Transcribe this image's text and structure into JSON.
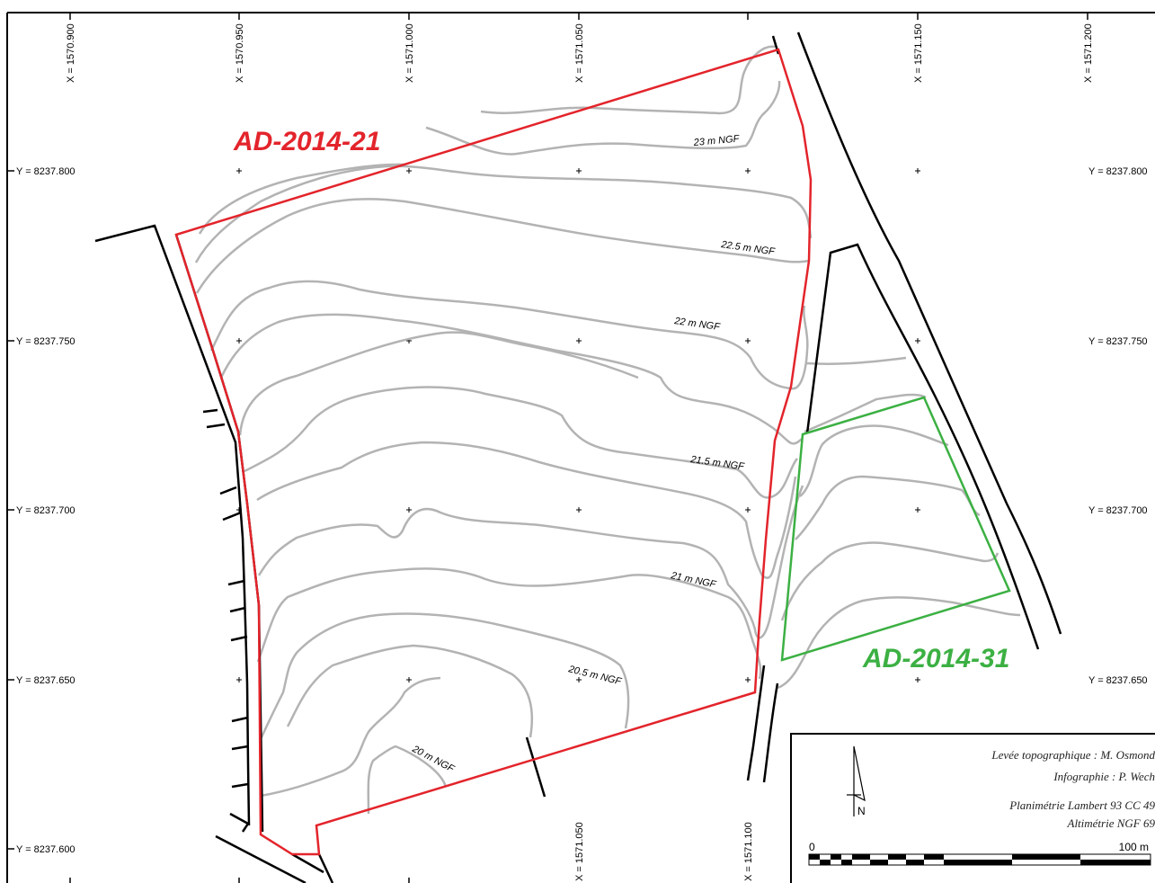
{
  "grid": {
    "x_labels": [
      "X = 1570.900",
      "X = 1570.950",
      "X = 1571.000",
      "X = 1571.050",
      "X = 1571.150",
      "X = 1571.200"
    ],
    "x_labels_bottom": [
      "X = 1571.050",
      "X = 1571.100"
    ],
    "y_labels_left": [
      "Y = 8237.800",
      "Y = 8237.750",
      "Y = 8237.700",
      "Y = 8237.650",
      "Y = 8237.600"
    ],
    "y_labels_right": [
      "Y = 8237.800",
      "Y = 8237.750",
      "Y = 8237.700",
      "Y = 8237.650"
    ]
  },
  "parcels": [
    {
      "id": "AD-2014-21",
      "label": "AD-2014-21",
      "color": "#e3242b"
    },
    {
      "id": "AD-2014-31",
      "label": "AD-2014-31",
      "color": "#3cb043"
    }
  ],
  "contours": {
    "color": "#b3b3b3",
    "labels": [
      "23 m NGF",
      "22.5 m NGF",
      "22 m NGF",
      "21.5 m NGF",
      "21 m NGF",
      "20.5 m NGF",
      "20 m NGF"
    ]
  },
  "legend": {
    "credit_survey": "Levée topographique : M. Osmond",
    "credit_graphics": "Infographie : P. Wech",
    "planimetry": "Planimétrie Lambert 93 CC 49",
    "altimetry": "Altimétrie NGF 69",
    "north_label": "N",
    "scale_start": "0",
    "scale_end": "100 m"
  },
  "colors": {
    "frame": "#000000",
    "road_edges": "#000000"
  }
}
